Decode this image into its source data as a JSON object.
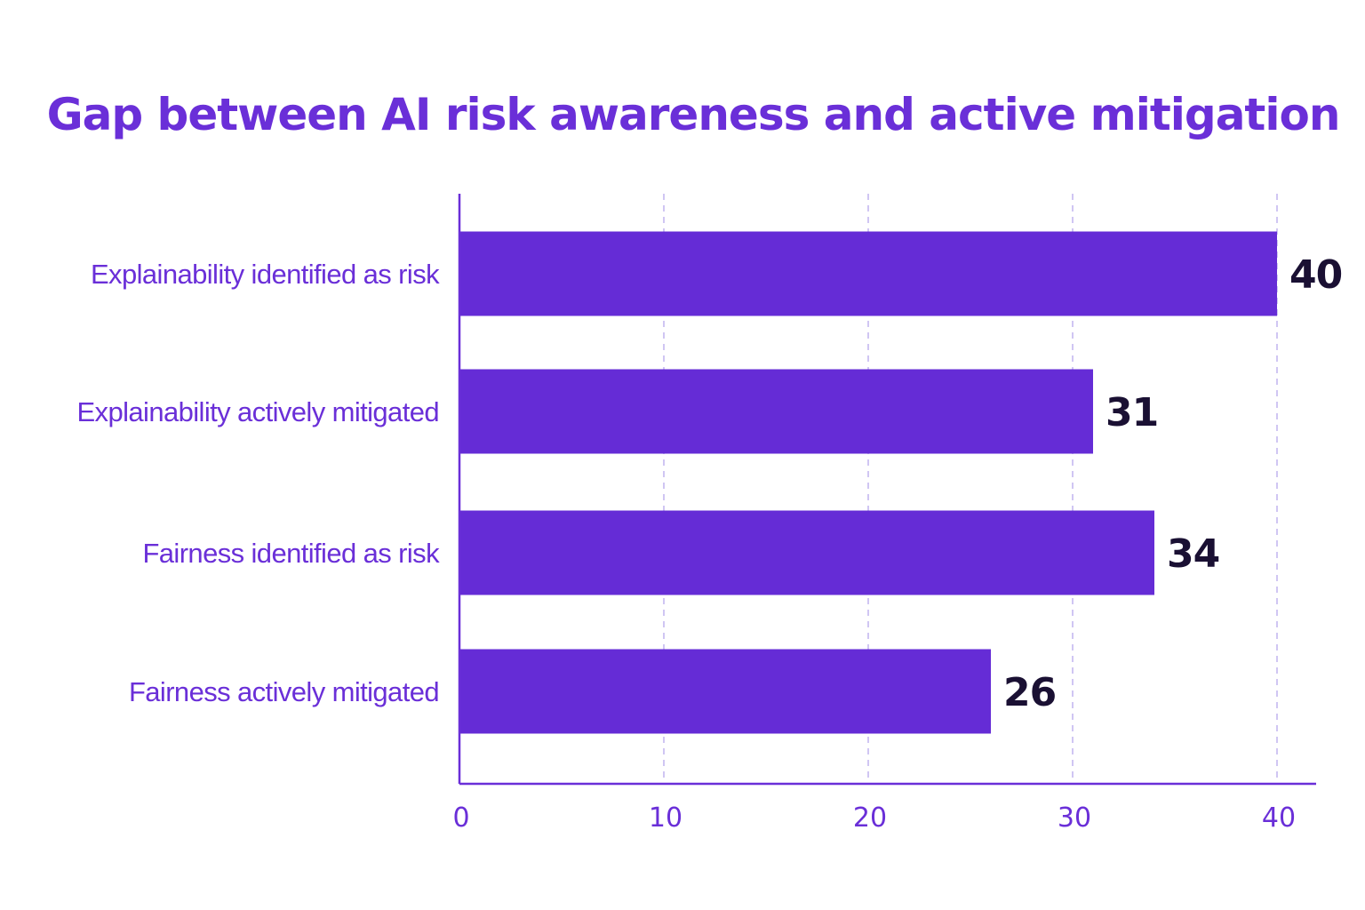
{
  "colors": {
    "bar": "#652CD6",
    "title": "#6A2FD8",
    "category_label": "#6A2FD8",
    "tick_label": "#6A2FD8",
    "value_label": "#1A1033",
    "axis": "#6A2FD8",
    "grid": "#C4B8F0",
    "background": "#FFFFFF"
  },
  "chart_data": {
    "type": "bar",
    "orientation": "horizontal",
    "title": "Gap between AI risk awareness and active mitigation",
    "xlabel": "",
    "ylabel": "",
    "categories": [
      "Explainability identified as risk",
      "Explainability actively mitigated",
      "Fairness identified as risk",
      "Fairness actively mitigated"
    ],
    "values": [
      40,
      31,
      34,
      26
    ],
    "value_labels": [
      "40",
      "31",
      "34",
      "26"
    ],
    "xlim": [
      0,
      40
    ],
    "xticks": [
      0,
      10,
      20,
      30,
      40
    ],
    "xtick_labels": [
      "0",
      "10",
      "20",
      "30",
      "40"
    ],
    "grid": "vertical dashed",
    "legend": "none"
  }
}
